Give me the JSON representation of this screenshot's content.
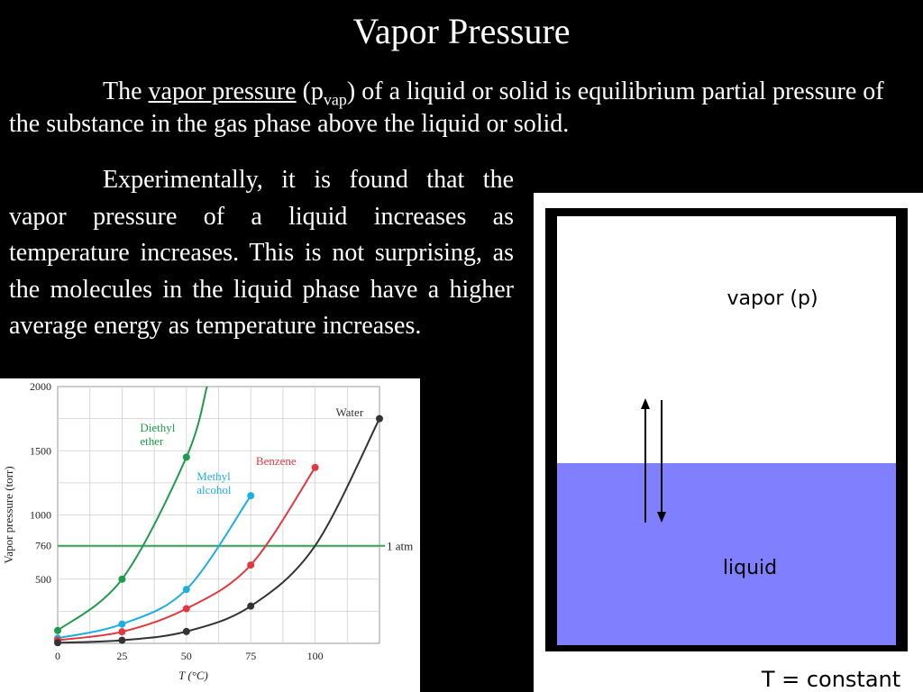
{
  "slide": {
    "title": "Vapor Pressure",
    "intro": {
      "pre": "The ",
      "term": "vapor pressure",
      "paren_open": " (p",
      "sub": "vap",
      "rest": ") of a liquid or solid is equilibrium partial pressure of the substance in the gas phase above the liquid or solid."
    },
    "experiment": "Experimentally, it is found that the vapor pressure of a liquid increases as temperature increases.  This is not surprising, as the molecules in the liquid phase have a higher average energy as temperature increases."
  },
  "diagram": {
    "vapor_label": "vapor (p)",
    "liquid_label": "liquid",
    "footer": "T = constant",
    "colors": {
      "liquid": "#8080ff",
      "frame": "#000000",
      "background": "#ffffff"
    }
  },
  "chart_data": {
    "type": "line",
    "xlabel": "T (°C)",
    "ylabel": "Vapor pressure (torr)",
    "xlim": [
      0,
      125
    ],
    "ylim": [
      0,
      2000
    ],
    "x_ticks": [
      0,
      25,
      50,
      75,
      100
    ],
    "y_ticks": [
      500,
      760,
      1000,
      1500,
      2000
    ],
    "grid": true,
    "reference_line": {
      "y": 760,
      "label": "1 atm",
      "color": "#3aa35a"
    },
    "series": [
      {
        "name": "Diethyl ether",
        "label_lines": [
          "Diethyl",
          "ether"
        ],
        "color": "#1f9a4e",
        "x": [
          0,
          25,
          50,
          58
        ],
        "y": [
          100,
          500,
          1450,
          2000
        ],
        "markers": [
          [
            0,
            100
          ],
          [
            25,
            500
          ],
          [
            50,
            1450
          ]
        ],
        "label_pos": [
          32,
          1650
        ]
      },
      {
        "name": "Methyl alcohol",
        "label_lines": [
          "Methyl",
          "alcohol"
        ],
        "color": "#1eaee0",
        "x": [
          0,
          25,
          50,
          75
        ],
        "y": [
          40,
          150,
          420,
          1150
        ],
        "markers": [
          [
            0,
            40
          ],
          [
            25,
            150
          ],
          [
            50,
            420
          ],
          [
            75,
            1150
          ]
        ],
        "label_pos": [
          54,
          1270
        ]
      },
      {
        "name": "Benzene",
        "label_lines": [
          "Benzene"
        ],
        "color": "#e0383e",
        "x": [
          0,
          25,
          50,
          75,
          100
        ],
        "y": [
          25,
          90,
          270,
          610,
          1370
        ],
        "markers": [
          [
            0,
            25
          ],
          [
            25,
            90
          ],
          [
            50,
            270
          ],
          [
            75,
            610
          ],
          [
            100,
            1370
          ]
        ],
        "label_pos": [
          77,
          1390
        ]
      },
      {
        "name": "Water",
        "label_lines": [
          "Water"
        ],
        "color": "#333333",
        "x": [
          0,
          25,
          50,
          75,
          100,
          125
        ],
        "y": [
          5,
          24,
          92,
          290,
          760,
          1750
        ],
        "markers": [
          [
            0,
            5
          ],
          [
            25,
            24
          ],
          [
            50,
            92
          ],
          [
            75,
            290
          ],
          [
            125,
            1750
          ]
        ],
        "label_pos": [
          108,
          1770
        ]
      }
    ]
  }
}
